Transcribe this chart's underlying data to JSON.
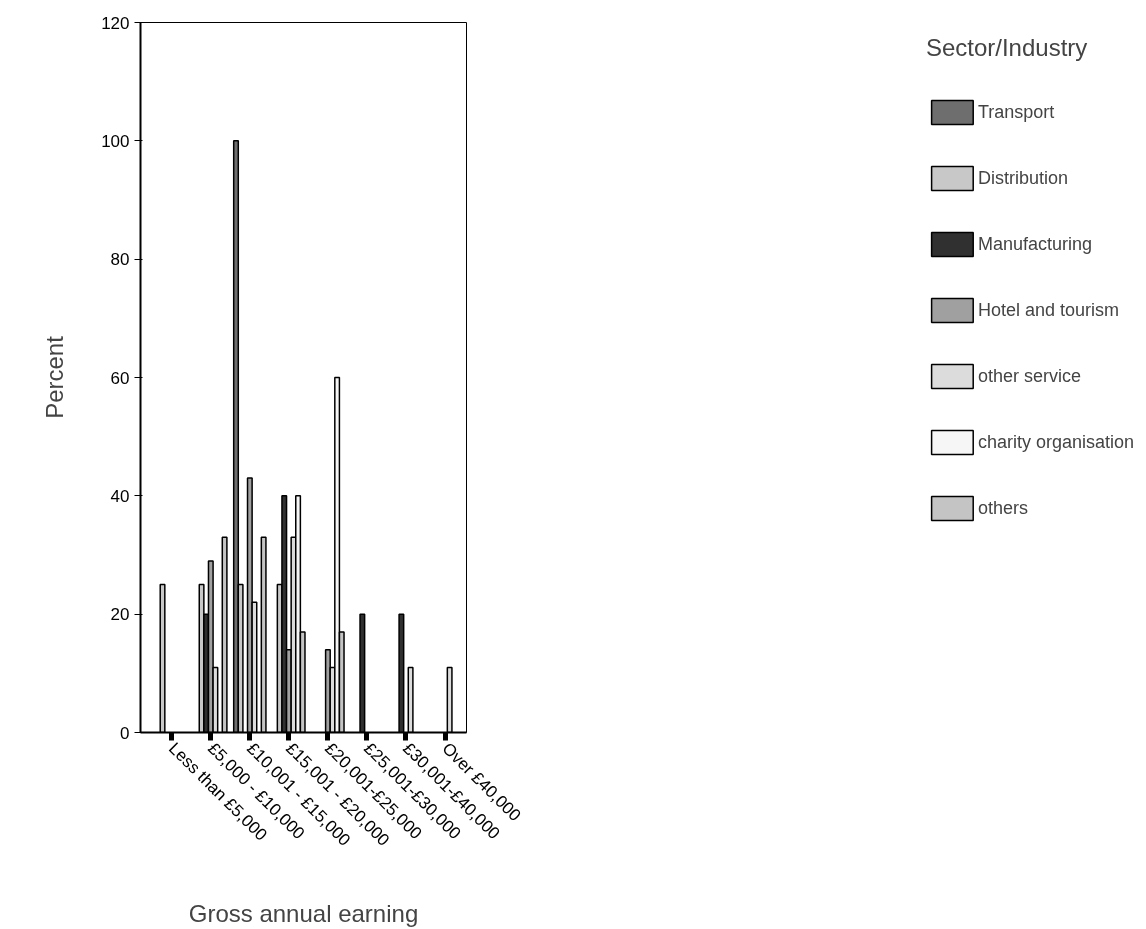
{
  "chart_data": {
    "type": "bar",
    "xlabel": "Gross annual earning",
    "ylabel": "Percent",
    "legend_title": "Sector/Industry",
    "categories": [
      "Less than £5,000",
      "£5,000 - £10,000",
      "£10,001 - £15,000",
      "£15,001 - £20,000",
      "£20,001-£25,000",
      "£25,001-£30,000",
      "£30,001-£40,000",
      "Over £40,000"
    ],
    "series": [
      {
        "name": "Transport",
        "color": "#6e6e6e",
        "values": [
          null,
          null,
          100,
          null,
          null,
          null,
          null,
          null
        ]
      },
      {
        "name": "Distribution",
        "color": "#c8c8c8",
        "values": [
          25,
          25,
          25,
          25,
          null,
          null,
          null,
          null
        ]
      },
      {
        "name": "Manufacturing",
        "color": "#303030",
        "values": [
          null,
          20,
          null,
          40,
          null,
          20,
          20,
          null
        ]
      },
      {
        "name": "Hotel and tourism",
        "color": "#a0a0a0",
        "values": [
          null,
          29,
          43,
          14,
          14,
          null,
          null,
          null
        ]
      },
      {
        "name": "other service",
        "color": "#dcdcdc",
        "values": [
          null,
          11,
          22,
          33,
          11,
          null,
          11,
          11
        ]
      },
      {
        "name": "charity organisation",
        "color": "#f6f6f6",
        "values": [
          null,
          null,
          null,
          40,
          60,
          null,
          null,
          null
        ]
      },
      {
        "name": "others",
        "color": "#c4c4c4",
        "values": [
          null,
          33,
          33,
          17,
          17,
          null,
          null,
          null
        ]
      }
    ],
    "ylim": [
      0,
      120
    ],
    "yticks": [
      0,
      20,
      40,
      60,
      80,
      100,
      120
    ],
    "grid": false,
    "legend": "right"
  }
}
